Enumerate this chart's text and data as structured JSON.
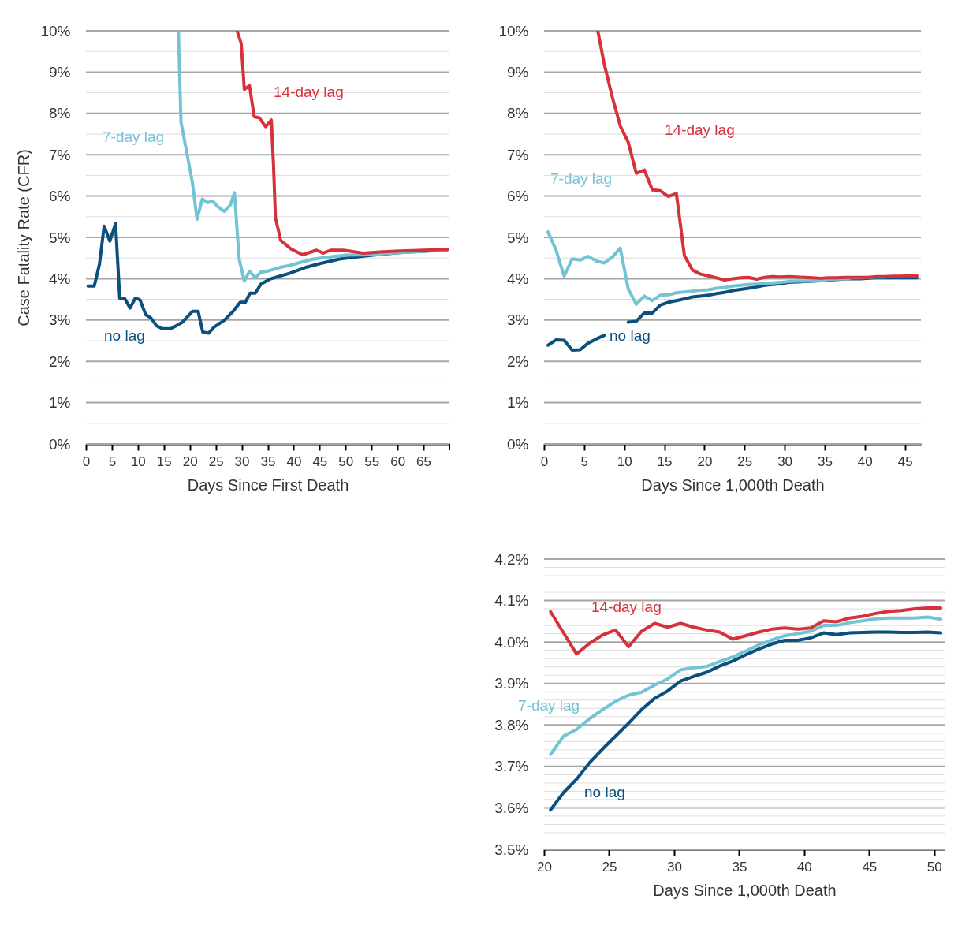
{
  "chart_data": [
    {
      "type": "line",
      "xlabel": "Days Since First Death",
      "ylabel": "Case Fatality Rate (CFR)",
      "xlim": [
        0,
        70
      ],
      "xticks": [
        0,
        5,
        10,
        15,
        20,
        25,
        30,
        35,
        40,
        45,
        50,
        55,
        60,
        65,
        {
          "value": 70,
          "label": null
        }
      ],
      "ylim": [
        0,
        10
      ],
      "yticks": [
        {
          "value": 0,
          "label": "0%"
        },
        {
          "value": 0.5,
          "label": null
        },
        {
          "value": 1,
          "label": "1%"
        },
        {
          "value": 1.5,
          "label": null
        },
        {
          "value": 2,
          "label": "2%"
        },
        {
          "value": 2.5,
          "label": null
        },
        {
          "value": 3,
          "label": "3%"
        },
        {
          "value": 3.5,
          "label": null
        },
        {
          "value": 4,
          "label": "4%"
        },
        {
          "value": 4.5,
          "label": null
        },
        {
          "value": 5,
          "label": "5%"
        },
        {
          "value": 5.5,
          "label": null
        },
        {
          "value": 6,
          "label": "6%"
        },
        {
          "value": 6.5,
          "label": null
        },
        {
          "value": 7,
          "label": "7%"
        },
        {
          "value": 7.5,
          "label": null
        },
        {
          "value": 8,
          "label": "8%"
        },
        {
          "value": 8.5,
          "label": null
        },
        {
          "value": 9,
          "label": "9%"
        },
        {
          "value": 9.5,
          "label": null
        },
        {
          "value": 10,
          "label": "10%"
        }
      ],
      "grid": "y",
      "series": [
        {
          "name": "no lag",
          "color": "#0b4f7c",
          "x": [
            0.4,
            1.6,
            2.6,
            3.5,
            4.6,
            5.7,
            6.5,
            7.4,
            8.5,
            9.5,
            10.4,
            11.5,
            12.5,
            13.6,
            14.7,
            16.4,
            18.6,
            20.5,
            21.6,
            22.5,
            23.6,
            24.7,
            26.7,
            28.4,
            29.7,
            30.7,
            31.6,
            32.6,
            33.7,
            35.4,
            37.3,
            39.2,
            42.5,
            45.2,
            49,
            54.5,
            59.9,
            69.6
          ],
          "values": [
            3.82,
            3.82,
            4.35,
            5.27,
            4.91,
            5.33,
            3.53,
            3.53,
            3.29,
            3.53,
            3.49,
            3.13,
            3.05,
            2.86,
            2.79,
            2.79,
            2.95,
            3.21,
            3.21,
            2.71,
            2.68,
            2.83,
            3.0,
            3.22,
            3.43,
            3.43,
            3.65,
            3.65,
            3.87,
            3.99,
            4.06,
            4.13,
            4.28,
            4.37,
            4.48,
            4.56,
            4.63,
            4.7
          ]
        },
        {
          "name": "7-day lag",
          "color": "#74c3d5",
          "x": [
            17.8,
            18.3,
            19.4,
            20.5,
            21.4,
            22.4,
            23.4,
            24.4,
            25.4,
            26.6,
            27.8,
            28.6,
            29.5,
            30.5,
            31.5,
            32.6,
            33.7,
            34.9,
            36,
            37.6,
            39.2,
            40.9,
            43.6,
            46.3,
            50.1,
            54.5,
            59.9,
            69.6
          ],
          "values": [
            10.0,
            7.79,
            7.07,
            6.32,
            5.44,
            5.93,
            5.84,
            5.88,
            5.74,
            5.63,
            5.78,
            6.08,
            4.48,
            3.94,
            4.18,
            4.02,
            4.16,
            4.18,
            4.22,
            4.28,
            4.32,
            4.38,
            4.47,
            4.52,
            4.57,
            4.58,
            4.63,
            4.7
          ]
        },
        {
          "name": "14-day lag",
          "color": "#d6323c",
          "x": [
            29.1,
            29.9,
            30.5,
            31.5,
            32.4,
            33.4,
            34.6,
            35.7,
            36.1,
            36.5,
            37.5,
            39.5,
            41.7,
            44.4,
            45.7,
            47.1,
            49.6,
            53.4,
            57.2,
            60.4,
            69.6
          ],
          "values": [
            10.0,
            9.69,
            8.58,
            8.67,
            7.92,
            7.89,
            7.68,
            7.84,
            6.8,
            5.47,
            4.93,
            4.72,
            4.58,
            4.69,
            4.62,
            4.69,
            4.69,
            4.62,
            4.65,
            4.67,
            4.71
          ]
        }
      ]
    },
    {
      "type": "line",
      "xlabel": "Days Since 1,000th Death",
      "xlim": [
        0,
        47
      ],
      "xticks": [
        0,
        5,
        10,
        15,
        20,
        25,
        30,
        35,
        40,
        45
      ],
      "ylim": [
        0,
        10
      ],
      "yticks": [
        {
          "value": 0,
          "label": "0%"
        },
        {
          "value": 0.5,
          "label": null
        },
        {
          "value": 1,
          "label": "1%"
        },
        {
          "value": 1.5,
          "label": null
        },
        {
          "value": 2,
          "label": "2%"
        },
        {
          "value": 2.5,
          "label": null
        },
        {
          "value": 3,
          "label": "3%"
        },
        {
          "value": 3.5,
          "label": null
        },
        {
          "value": 4,
          "label": "4%"
        },
        {
          "value": 4.5,
          "label": null
        },
        {
          "value": 5,
          "label": "5%"
        },
        {
          "value": 5.5,
          "label": null
        },
        {
          "value": 6,
          "label": "6%"
        },
        {
          "value": 6.5,
          "label": null
        },
        {
          "value": 7,
          "label": "7%"
        },
        {
          "value": 7.5,
          "label": null
        },
        {
          "value": 8,
          "label": "8%"
        },
        {
          "value": 8.5,
          "label": null
        },
        {
          "value": 9,
          "label": "9%"
        },
        {
          "value": 9.5,
          "label": null
        },
        {
          "value": 10,
          "label": "10%"
        }
      ],
      "grid": "y",
      "series": [
        {
          "name": "no lag",
          "color": "#0b4f7c",
          "x": [
            0.5,
            1.5,
            2.5,
            3.5,
            4.5,
            5.5,
            6.5,
            7.5,
            8.5,
            9.5,
            10.5,
            11.5,
            12.5,
            13.5,
            14.5,
            15.5,
            16.5,
            17.5,
            18.5,
            19.5,
            20.5,
            21.5,
            22.5,
            23.5,
            24.5,
            25.5,
            26.5,
            27.5,
            28.5,
            29.5,
            30.5,
            31.5,
            32.5,
            33.5,
            34.5,
            35.5,
            36.5,
            37.5,
            38.5,
            39.5,
            40.5,
            41.5,
            42.5,
            43.5,
            44.5,
            45.5,
            46.5
          ],
          "values": [
            2.39,
            2.52,
            2.51,
            2.27,
            2.28,
            2.44,
            2.54,
            2.63,
            null,
            null,
            2.95,
            2.97,
            3.17,
            3.17,
            3.36,
            3.43,
            3.47,
            3.51,
            3.56,
            3.58,
            3.6,
            3.64,
            3.67,
            3.71,
            3.74,
            3.77,
            3.8,
            3.84,
            3.86,
            3.88,
            3.91,
            3.92,
            3.93,
            3.94,
            3.95,
            3.97,
            3.98,
            4.0,
            4.0,
            4.0,
            4.01,
            4.02,
            4.02,
            4.02,
            4.02,
            4.02,
            4.02
          ]
        },
        {
          "name": "7-day lag",
          "color": "#74c3d5",
          "x": [
            0.5,
            1.5,
            2.5,
            3.5,
            4.5,
            5.5,
            6.5,
            7.5,
            8.5,
            9.5,
            10.5,
            11.5,
            12.5,
            13.5,
            14.5,
            15.5,
            16.5,
            17.5,
            18.5,
            19.5,
            20.5,
            21.5,
            22.5,
            23.5,
            24.5,
            25.5,
            26.5,
            27.5,
            28.5,
            29.5,
            30.5,
            31.5,
            32.5,
            33.5,
            34.5,
            35.5,
            36.5,
            37.5,
            38.5,
            39.5,
            40.5,
            41.5,
            42.5
          ],
          "values": [
            5.13,
            4.69,
            4.06,
            4.48,
            4.45,
            4.54,
            4.43,
            4.38,
            4.52,
            4.74,
            3.75,
            3.38,
            3.58,
            3.47,
            3.6,
            3.61,
            3.66,
            3.68,
            3.7,
            3.72,
            3.73,
            3.77,
            3.79,
            3.82,
            3.84,
            3.86,
            3.87,
            3.88,
            3.9,
            3.91,
            3.93,
            3.94,
            3.94,
            3.95,
            3.96,
            3.98,
            3.99,
            4.0,
            4.02,
            4.02,
            4.03,
            4.04,
            4.04
          ]
        },
        {
          "name": "14-day lag",
          "color": "#d6323c",
          "x": [
            6.7,
            7.5,
            8.5,
            9.5,
            10.5,
            11.5,
            12.5,
            13.5,
            14.5,
            15.5,
            16.5,
            17.5,
            18.5,
            19.5,
            20.5,
            21.5,
            22.5,
            23.5,
            24.5,
            25.5,
            26.5,
            27.5,
            28.5,
            29.5,
            30.5,
            31.5,
            32.5,
            33.5,
            34.5,
            35.5,
            36.5,
            37.5,
            38.5,
            39.5,
            40.5,
            41.5,
            42.5,
            43.5,
            44.5,
            45.5,
            46.5
          ],
          "values": [
            10.0,
            9.2,
            8.4,
            7.7,
            7.3,
            6.55,
            6.63,
            6.15,
            6.13,
            5.99,
            6.06,
            4.56,
            4.21,
            4.11,
            4.07,
            4.02,
            3.97,
            4.0,
            4.02,
            4.03,
            3.99,
            4.03,
            4.05,
            4.04,
            4.05,
            4.04,
            4.03,
            4.02,
            4.01,
            4.02,
            4.02,
            4.03,
            4.03,
            4.03,
            4.03,
            4.05,
            4.05,
            4.06,
            4.06,
            4.07,
            4.07
          ]
        }
      ]
    },
    {
      "type": "line",
      "xlabel": "Days Since 1,000th Death",
      "xlim": [
        20,
        50.8
      ],
      "xticks": [
        20,
        25,
        30,
        35,
        40,
        45,
        50
      ],
      "ylim": [
        3.5,
        4.2
      ],
      "yticks": [
        {
          "value": 3.5,
          "label": "3.5%"
        },
        {
          "value": 3.52,
          "label": null
        },
        {
          "value": 3.54,
          "label": null
        },
        {
          "value": 3.56,
          "label": null
        },
        {
          "value": 3.58,
          "label": null
        },
        {
          "value": 3.6,
          "label": "3.6%"
        },
        {
          "value": 3.62,
          "label": null
        },
        {
          "value": 3.64,
          "label": null
        },
        {
          "value": 3.66,
          "label": null
        },
        {
          "value": 3.68,
          "label": null
        },
        {
          "value": 3.7,
          "label": "3.7%"
        },
        {
          "value": 3.72,
          "label": null
        },
        {
          "value": 3.74,
          "label": null
        },
        {
          "value": 3.76,
          "label": null
        },
        {
          "value": 3.78,
          "label": null
        },
        {
          "value": 3.8,
          "label": "3.8%"
        },
        {
          "value": 3.82,
          "label": null
        },
        {
          "value": 3.84,
          "label": null
        },
        {
          "value": 3.86,
          "label": null
        },
        {
          "value": 3.88,
          "label": null
        },
        {
          "value": 3.9,
          "label": "3.9%"
        },
        {
          "value": 3.92,
          "label": null
        },
        {
          "value": 3.94,
          "label": null
        },
        {
          "value": 3.96,
          "label": null
        },
        {
          "value": 3.98,
          "label": null
        },
        {
          "value": 4.0,
          "label": "4.0%"
        },
        {
          "value": 4.02,
          "label": null
        },
        {
          "value": 4.04,
          "label": null
        },
        {
          "value": 4.06,
          "label": null
        },
        {
          "value": 4.08,
          "label": null
        },
        {
          "value": 4.1,
          "label": "4.1%"
        },
        {
          "value": 4.12,
          "label": null
        },
        {
          "value": 4.14,
          "label": null
        },
        {
          "value": 4.16,
          "label": null
        },
        {
          "value": 4.18,
          "label": null
        },
        {
          "value": 4.2,
          "label": "4.2%"
        }
      ],
      "grid": "y",
      "x": [
        20.5,
        21.5,
        22.5,
        23.5,
        24.5,
        25.5,
        26.5,
        27.5,
        28.5,
        29.5,
        30.5,
        31.5,
        32.5,
        33.5,
        34.5,
        35.5,
        36.5,
        37.5,
        38.5,
        39.5,
        40.5,
        41.5,
        42.5,
        43.5,
        44.5,
        45.5,
        46.5,
        47.5,
        48.5,
        49.5,
        50.5
      ],
      "series": [
        {
          "name": "no lag",
          "color": "#0b4f7c",
          "values": [
            3.595,
            3.637,
            3.669,
            3.709,
            3.742,
            3.773,
            3.804,
            3.837,
            3.864,
            3.882,
            3.906,
            3.917,
            3.927,
            3.942,
            3.954,
            3.969,
            3.983,
            3.995,
            4.004,
            4.004,
            4.01,
            4.022,
            4.018,
            4.022,
            4.023,
            4.024,
            4.024,
            4.023,
            4.023,
            4.024,
            4.022
          ]
        },
        {
          "name": "7-day lag",
          "color": "#74c3d5",
          "values": [
            3.729,
            3.773,
            3.789,
            3.815,
            3.837,
            3.857,
            3.872,
            3.879,
            3.896,
            3.911,
            3.933,
            3.938,
            3.941,
            3.953,
            3.964,
            3.978,
            3.993,
            4.005,
            4.015,
            4.02,
            4.026,
            4.04,
            4.04,
            4.047,
            4.051,
            4.056,
            4.058,
            4.058,
            4.058,
            4.06,
            4.055
          ]
        },
        {
          "name": "14-day lag",
          "color": "#d6323c",
          "values": [
            4.073,
            4.022,
            3.971,
            3.997,
            4.017,
            4.029,
            3.989,
            4.026,
            4.045,
            4.036,
            4.045,
            4.036,
            4.029,
            4.024,
            4.007,
            4.015,
            4.024,
            4.031,
            4.034,
            4.031,
            4.034,
            4.051,
            4.049,
            4.058,
            4.062,
            4.069,
            4.074,
            4.076,
            4.08,
            4.082,
            4.082
          ]
        }
      ]
    }
  ]
}
